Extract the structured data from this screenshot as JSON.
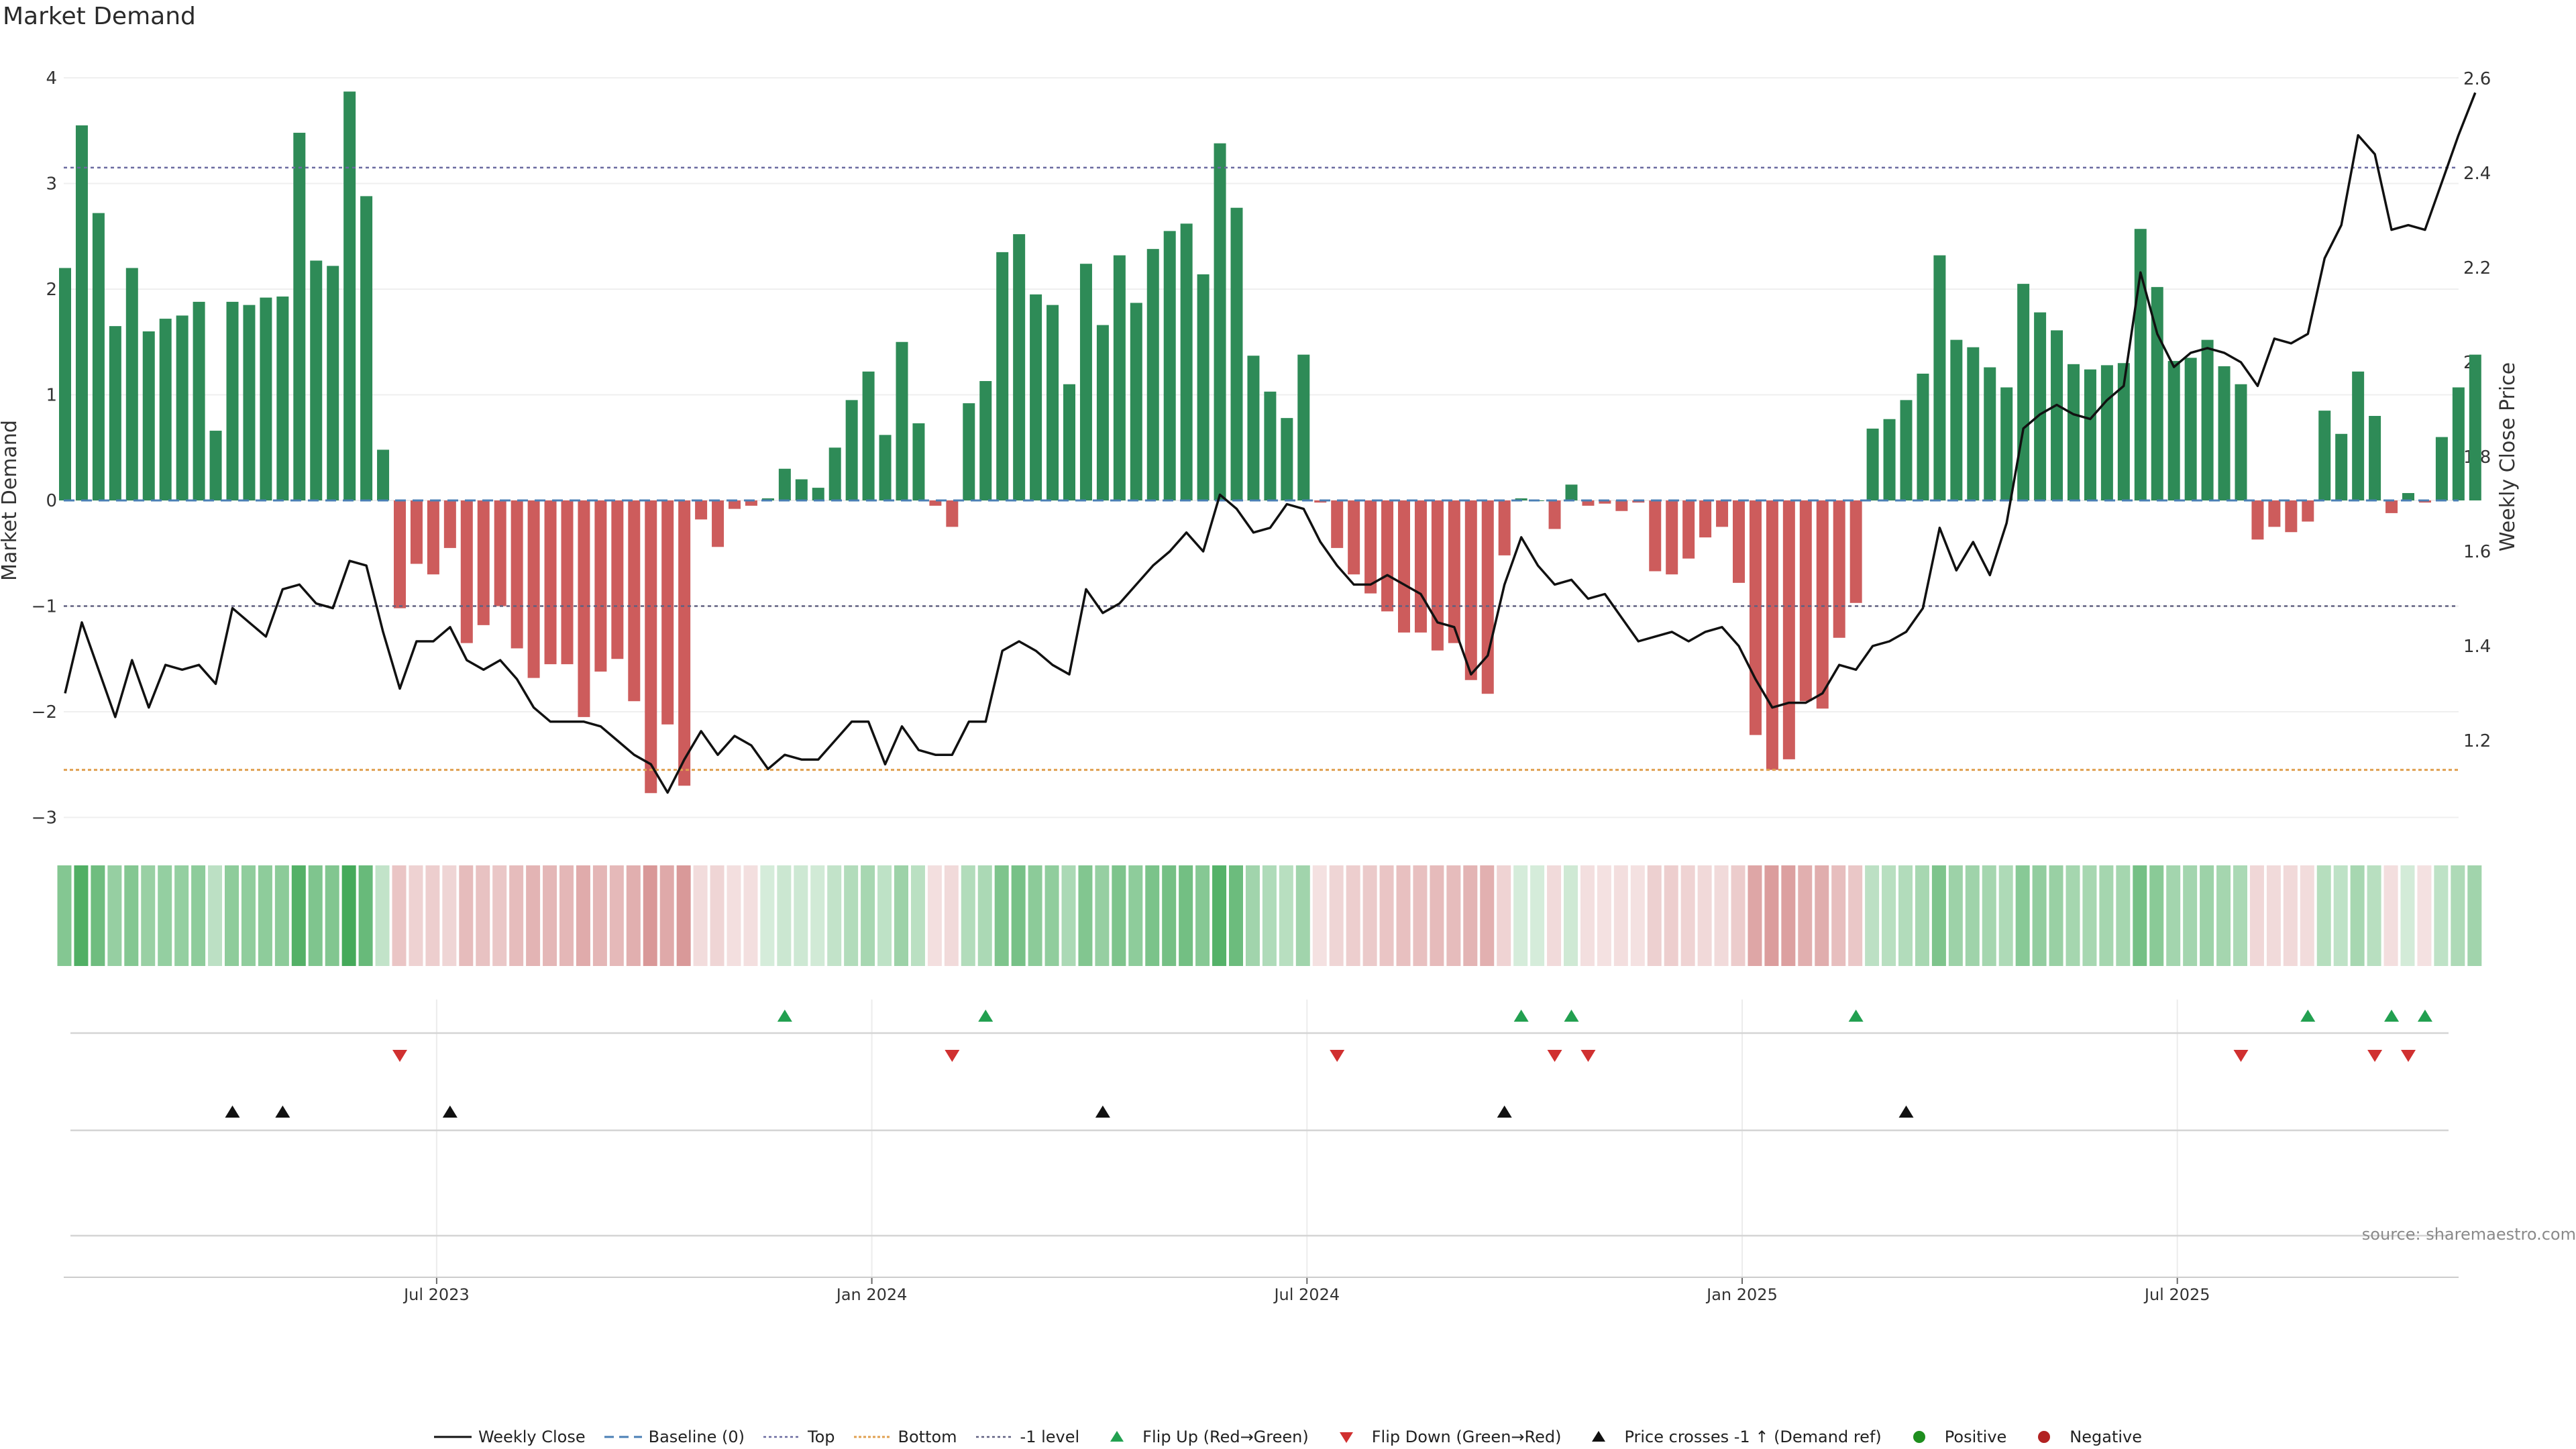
{
  "title": "Market Demand",
  "source": "source: sharemaestro.com",
  "chart_data": {
    "type": "bar+line",
    "left_axis": {
      "label": "Market Demand",
      "range": [
        -3.3,
        4.1
      ],
      "ticks": [
        4,
        3,
        2,
        1,
        0,
        -1,
        -2,
        -3
      ],
      "tick_labels": [
        "4",
        "3",
        "2",
        "1",
        "0",
        "−1",
        "−2",
        "−3"
      ]
    },
    "right_axis": {
      "label": "Weekly Close Price",
      "range": [
        0.98,
        2.6
      ],
      "ticks": [
        2.6,
        2.4,
        2.2,
        2.0,
        1.8,
        1.6,
        1.4,
        1.2
      ],
      "tick_labels": [
        "2.6",
        "2.4",
        "2.2",
        "2",
        "1.8",
        "1.6",
        "1.4",
        "1.2"
      ]
    },
    "x_ticks": [
      {
        "label": "Jul 2023",
        "week": 22
      },
      {
        "label": "Jan 2024",
        "week": 48
      },
      {
        "label": "Jul 2024",
        "week": 74
      },
      {
        "label": "Jan 2025",
        "week": 100
      },
      {
        "label": "Jul 2025",
        "week": 126
      }
    ],
    "reference_lines": {
      "top": 3.15,
      "bottom": -2.55,
      "minus_one": -1.0,
      "baseline": 0
    },
    "demand": [
      2.2,
      3.55,
      2.72,
      1.65,
      2.2,
      1.6,
      1.72,
      1.75,
      1.88,
      0.66,
      1.88,
      1.85,
      1.92,
      1.93,
      3.48,
      2.27,
      2.22,
      3.87,
      2.88,
      0.48,
      -1.02,
      -0.6,
      -0.7,
      -0.45,
      -1.35,
      -1.18,
      -1.0,
      -1.4,
      -1.68,
      -1.55,
      -1.55,
      -2.05,
      -1.62,
      -1.5,
      -1.9,
      -2.77,
      -2.12,
      -2.7,
      -0.18,
      -0.44,
      -0.08,
      -0.05,
      0.02,
      0.3,
      0.2,
      0.12,
      0.5,
      0.95,
      1.22,
      0.62,
      1.5,
      0.73,
      -0.05,
      -0.25,
      0.92,
      1.13,
      2.35,
      2.52,
      1.95,
      1.85,
      1.1,
      2.24,
      1.66,
      2.32,
      1.87,
      2.38,
      2.55,
      2.62,
      2.14,
      3.38,
      2.77,
      1.37,
      1.03,
      0.78,
      1.38,
      -0.02,
      -0.45,
      -0.7,
      -0.88,
      -1.05,
      -1.25,
      -1.25,
      -1.42,
      -1.35,
      -1.7,
      -1.83,
      -0.52,
      0.02,
      0.0,
      -0.27,
      0.15,
      -0.05,
      -0.03,
      -0.1,
      -0.02,
      -0.67,
      -0.7,
      -0.55,
      -0.35,
      -0.25,
      -0.78,
      -2.22,
      -2.55,
      -2.45,
      -1.9,
      -1.97,
      -1.3,
      -0.97,
      0.68,
      0.77,
      0.95,
      1.2,
      2.32,
      1.52,
      1.45,
      1.26,
      1.07,
      2.05,
      1.78,
      1.61,
      1.29,
      1.24,
      1.28,
      1.3,
      2.57,
      2.02,
      1.32,
      1.35,
      1.52,
      1.27,
      1.1,
      -0.37,
      -0.25,
      -0.3,
      -0.2,
      0.85,
      0.63,
      1.22,
      0.8,
      -0.12,
      0.07,
      -0.02,
      0.6,
      1.07,
      1.38
    ],
    "price": [
      1.3,
      1.45,
      1.35,
      1.25,
      1.37,
      1.27,
      1.36,
      1.35,
      1.36,
      1.32,
      1.48,
      1.45,
      1.42,
      1.52,
      1.53,
      1.49,
      1.48,
      1.58,
      1.57,
      1.43,
      1.31,
      1.41,
      1.41,
      1.44,
      1.37,
      1.35,
      1.37,
      1.33,
      1.27,
      1.24,
      1.24,
      1.24,
      1.23,
      1.2,
      1.17,
      1.15,
      1.09,
      1.16,
      1.22,
      1.17,
      1.21,
      1.19,
      1.14,
      1.17,
      1.16,
      1.16,
      1.2,
      1.24,
      1.24,
      1.15,
      1.23,
      1.18,
      1.17,
      1.17,
      1.24,
      1.24,
      1.39,
      1.41,
      1.39,
      1.36,
      1.34,
      1.52,
      1.47,
      1.49,
      1.53,
      1.57,
      1.6,
      1.64,
      1.6,
      1.72,
      1.69,
      1.64,
      1.65,
      1.7,
      1.69,
      1.62,
      1.57,
      1.53,
      1.53,
      1.55,
      1.53,
      1.51,
      1.45,
      1.44,
      1.34,
      1.38,
      1.53,
      1.63,
      1.57,
      1.53,
      1.54,
      1.5,
      1.51,
      1.46,
      1.41,
      1.42,
      1.43,
      1.41,
      1.43,
      1.44,
      1.4,
      1.33,
      1.27,
      1.28,
      1.28,
      1.3,
      1.36,
      1.35,
      1.4,
      1.41,
      1.43,
      1.48,
      1.65,
      1.56,
      1.62,
      1.55,
      1.66,
      1.86,
      1.89,
      1.91,
      1.89,
      1.88,
      1.92,
      1.95,
      2.19,
      2.06,
      1.99,
      2.02,
      2.03,
      2.02,
      2.0,
      1.95,
      2.05,
      2.04,
      2.06,
      2.22,
      2.29,
      2.48,
      2.44,
      2.28,
      2.29,
      2.28,
      2.38,
      2.48,
      2.57
    ],
    "flip_up_weeks": [
      43,
      55,
      87,
      90,
      107,
      134,
      139,
      141
    ],
    "flip_down_weeks": [
      20,
      53,
      76,
      89,
      91,
      130,
      138,
      140
    ],
    "price_cross_weeks": [
      10,
      13,
      23,
      62,
      86,
      110
    ],
    "legend": [
      {
        "key": "weekly_close",
        "label": "Weekly Close"
      },
      {
        "key": "baseline",
        "label": "Baseline (0)"
      },
      {
        "key": "top",
        "label": "Top"
      },
      {
        "key": "bottom",
        "label": "Bottom"
      },
      {
        "key": "minus_one",
        "label": "-1 level"
      },
      {
        "key": "flip_up",
        "label": "Flip Up (Red→Green)"
      },
      {
        "key": "flip_down",
        "label": "Flip Down (Green→Red)"
      },
      {
        "key": "price_cross",
        "label": "Price crosses -1 ↑ (Demand ref)"
      },
      {
        "key": "positive",
        "label": "Positive"
      },
      {
        "key": "negative",
        "label": "Negative"
      }
    ]
  },
  "colors": {
    "positive": "#2e8b57",
    "negative": "#cd5c5c",
    "price": "#111111",
    "top": "#6a6aa0",
    "bottom": "#e0a050",
    "minus_one": "#606080",
    "baseline": "#4a7fb5",
    "flip_up": "#22a050",
    "flip_down": "#d03030",
    "cross": "#111111",
    "dot_positive": "#1e8e1e",
    "dot_negative": "#b22222"
  }
}
